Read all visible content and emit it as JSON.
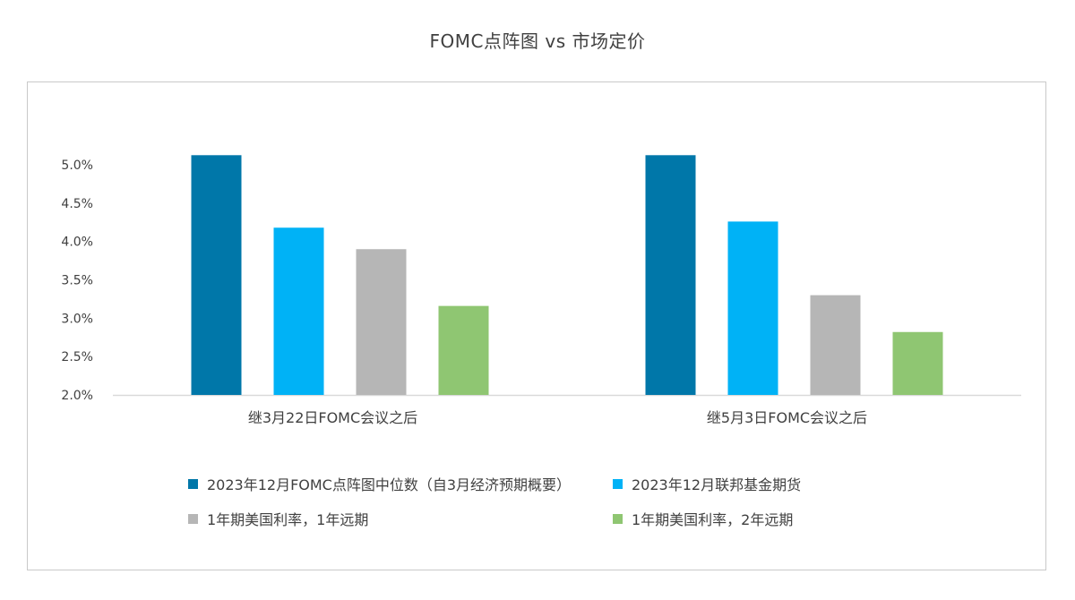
{
  "chart_data": {
    "type": "bar",
    "title": "FOMC点阵图 vs 市场定价",
    "categories": [
      "继3月22日FOMC会议之后",
      "继5月3日FOMC会议之后"
    ],
    "series": [
      {
        "name": "2023年12月FOMC点阵图中位数（自3月经济预期概要）",
        "color": "#0077A9",
        "values": [
          5.125,
          5.125
        ]
      },
      {
        "name": "2023年12月联邦基金期货",
        "color": "#00B2F6",
        "values": [
          4.18,
          4.26
        ]
      },
      {
        "name": "1年期美国利率，1年远期",
        "color": "#B6B6B6",
        "values": [
          3.9,
          3.3
        ]
      },
      {
        "name": "1年期美国利率，2年远期",
        "color": "#8FC672",
        "values": [
          3.16,
          2.82
        ]
      }
    ],
    "yticks": [
      "2.0%",
      "2.5%",
      "3.0%",
      "3.5%",
      "4.0%",
      "4.5%",
      "5.0%"
    ],
    "ylim": [
      2.0,
      5.0
    ],
    "grid": false,
    "legend": "bottom"
  }
}
